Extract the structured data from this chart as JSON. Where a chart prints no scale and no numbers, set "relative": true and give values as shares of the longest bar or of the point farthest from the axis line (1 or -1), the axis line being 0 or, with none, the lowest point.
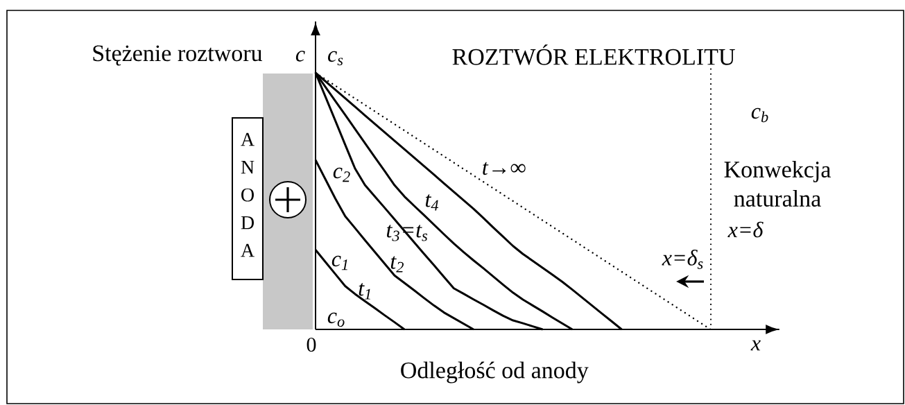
{
  "chart_data": {
    "type": "line",
    "xlabel": "Odległość od anody",
    "ylabel": "Stężenie roztworu",
    "relative": true,
    "marker": "none",
    "line_style": "solid",
    "categories": [
      null,
      null,
      null,
      null,
      null,
      null,
      null,
      null,
      null,
      null,
      null,
      null,
      null,
      null,
      null,
      null,
      null,
      null,
      null,
      null,
      null,
      null,
      null,
      null,
      null,
      null,
      null,
      null,
      null,
      null,
      null,
      null,
      null,
      null,
      null,
      null,
      null,
      null,
      null,
      null,
      null
    ],
    "series": [
      {
        "name": "t$_{1}$",
        "color": "#000000",
        "values": [
          0.31,
          0.263,
          0.216,
          0.169,
          0.138,
          0.11,
          0.083,
          0.055,
          0.028,
          0,
          null,
          null,
          null,
          null,
          null,
          null,
          null,
          null,
          null,
          null,
          null,
          null,
          null,
          null,
          null,
          null,
          null,
          null,
          null,
          null,
          null,
          null,
          null,
          null,
          null,
          null,
          null,
          null,
          null,
          null,
          null
        ]
      },
      {
        "name": "t$_{2}$",
        "color": "#000000",
        "values": [
          0.66,
          0.585,
          0.51,
          0.441,
          0.395,
          0.348,
          0.302,
          0.256,
          0.21,
          0.181,
          0.152,
          0.122,
          0.093,
          0.066,
          0.044,
          0.022,
          0,
          null,
          null,
          null,
          null,
          null,
          null,
          null,
          null,
          null,
          null,
          null,
          null,
          null,
          null,
          null,
          null,
          null,
          null,
          null,
          null,
          null,
          null,
          null,
          null
        ]
      },
      {
        "name": "t$_{3}$=t$_{s}$",
        "color": "#000000",
        "values": [
          1,
          0.907,
          0.814,
          0.72,
          0.627,
          0.563,
          0.518,
          0.474,
          0.429,
          0.384,
          0.339,
          0.294,
          0.25,
          0.205,
          0.16,
          0.139,
          0.117,
          0.096,
          0.074,
          0.053,
          0.035,
          0.024,
          0.012,
          0,
          null,
          null,
          null,
          null,
          null,
          null,
          null,
          null,
          null,
          null,
          null,
          null,
          null,
          null,
          null,
          null,
          null
        ]
      },
      {
        "name": "t$_{4}$",
        "color": "#000000",
        "values": [
          1,
          0.945,
          0.89,
          0.836,
          0.781,
          0.726,
          0.671,
          0.617,
          0.562,
          0.518,
          0.481,
          0.445,
          0.408,
          0.371,
          0.335,
          0.301,
          0.269,
          0.238,
          0.206,
          0.174,
          0.143,
          0.116,
          0.093,
          0.07,
          0.046,
          0.023,
          0,
          null,
          null,
          null,
          null,
          null,
          null,
          null,
          null,
          null,
          null,
          null,
          null,
          null,
          null
        ]
      },
      {
        "color": "#000000",
        "values": [
          1,
          0.967,
          0.934,
          0.901,
          0.868,
          0.834,
          0.801,
          0.768,
          0.735,
          0.702,
          0.669,
          0.636,
          0.603,
          0.569,
          0.536,
          0.503,
          0.47,
          0.434,
          0.397,
          0.361,
          0.325,
          0.294,
          0.267,
          0.24,
          0.213,
          0.185,
          0.155,
          0.124,
          0.093,
          0.062,
          0.031,
          0,
          null,
          null,
          null,
          null,
          null,
          null,
          null,
          null,
          null
        ]
      },
      {
        "name": "t→∞",
        "color": "#000000",
        "line_style": "dotted",
        "values": [
          1,
          0.975,
          0.95,
          0.925,
          0.9,
          0.875,
          0.85,
          0.825,
          0.8,
          0.775,
          0.75,
          0.725,
          0.7,
          0.675,
          0.65,
          0.625,
          0.6,
          0.575,
          0.55,
          0.525,
          0.5,
          0.475,
          0.45,
          0.425,
          0.4,
          0.375,
          0.35,
          0.325,
          0.3,
          0.275,
          0.25,
          0.225,
          0.2,
          0.175,
          0.15,
          0.125,
          0.1,
          0.075,
          0.05,
          0.025,
          0
        ]
      }
    ],
    "annotations": [
      "c",
      "c$_{s}$",
      "ROZTWÓR ELEKTROLITU",
      "c$_{b}$",
      "Konwekcja naturalna",
      "c$_{2}$",
      "A N O D A",
      "x=δ",
      "x=δ$_{s}$",
      "c$_{1}$",
      "c$_{o}$",
      "0",
      "x"
    ]
  }
}
